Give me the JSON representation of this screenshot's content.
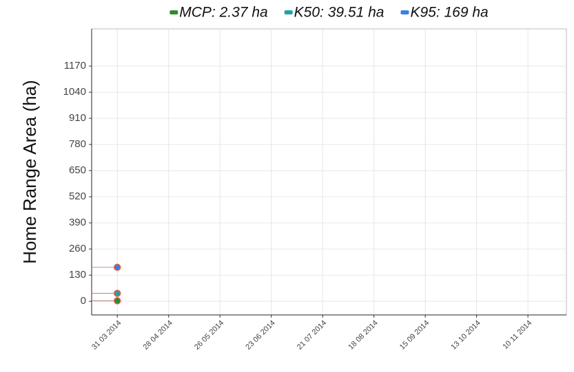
{
  "chart_data": {
    "type": "scatter",
    "y_label": "Home Range Area (ha)",
    "series": [
      {
        "name": "MCP: 2.37 ha",
        "color": "#2e8b2e",
        "x": [
          "31 03 2014"
        ],
        "values": [
          2.37
        ]
      },
      {
        "name": "K50: 39.51 ha",
        "color": "#1fa3a8",
        "x": [
          "31 03 2014"
        ],
        "values": [
          39.51
        ]
      },
      {
        "name": "K95: 169 ha",
        "color": "#3b7fe0",
        "x": [
          "31 03 2014"
        ],
        "values": [
          169
        ]
      }
    ],
    "marker_edge_color": "#e0604a",
    "xlim": [
      "17 03 2014",
      "01 12 2014"
    ],
    "xticks": [
      "31 03 2014",
      "28 04 2014",
      "26 05 2014",
      "23 06 2014",
      "21 07 2014",
      "18 08 2014",
      "15 09 2014",
      "13 10 2014",
      "10 11 2014"
    ],
    "ylim": [
      -68,
      1355
    ],
    "yticks": [
      0,
      130,
      260,
      390,
      520,
      650,
      780,
      910,
      1040,
      1170
    ],
    "grid": true,
    "legend": "top"
  }
}
